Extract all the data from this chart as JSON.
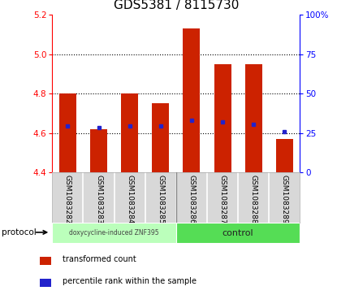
{
  "title": "GDS5381 / 8115730",
  "samples": [
    "GSM1083282",
    "GSM1083283",
    "GSM1083284",
    "GSM1083285",
    "GSM1083286",
    "GSM1083287",
    "GSM1083288",
    "GSM1083289"
  ],
  "bar_values": [
    4.8,
    4.62,
    4.8,
    4.75,
    5.13,
    4.95,
    4.95,
    4.57
  ],
  "bar_base": 4.4,
  "blue_dot_values": [
    4.635,
    4.628,
    4.635,
    4.635,
    4.665,
    4.655,
    4.645,
    4.608
  ],
  "ylim": [
    4.4,
    5.2
  ],
  "yticks_left": [
    4.4,
    4.6,
    4.8,
    5.0,
    5.2
  ],
  "yticks_right": [
    0,
    25,
    50,
    75,
    100
  ],
  "yticks_right_labels": [
    "0",
    "25",
    "50",
    "75",
    "100%"
  ],
  "bar_color": "#cc2200",
  "blue_dot_color": "#2222cc",
  "sample_bg_color": "#d8d8d8",
  "plot_bg": "#ffffff",
  "group1_label": "doxycycline-induced ZNF395",
  "group2_label": "control",
  "group1_color": "#bbffbb",
  "group2_color": "#55dd55",
  "protocol_label": "protocol",
  "legend_red_label": "transformed count",
  "legend_blue_label": "percentile rank within the sample",
  "title_fontsize": 11,
  "tick_fontsize": 7.5,
  "label_fontsize": 6.5,
  "bar_width": 0.55
}
